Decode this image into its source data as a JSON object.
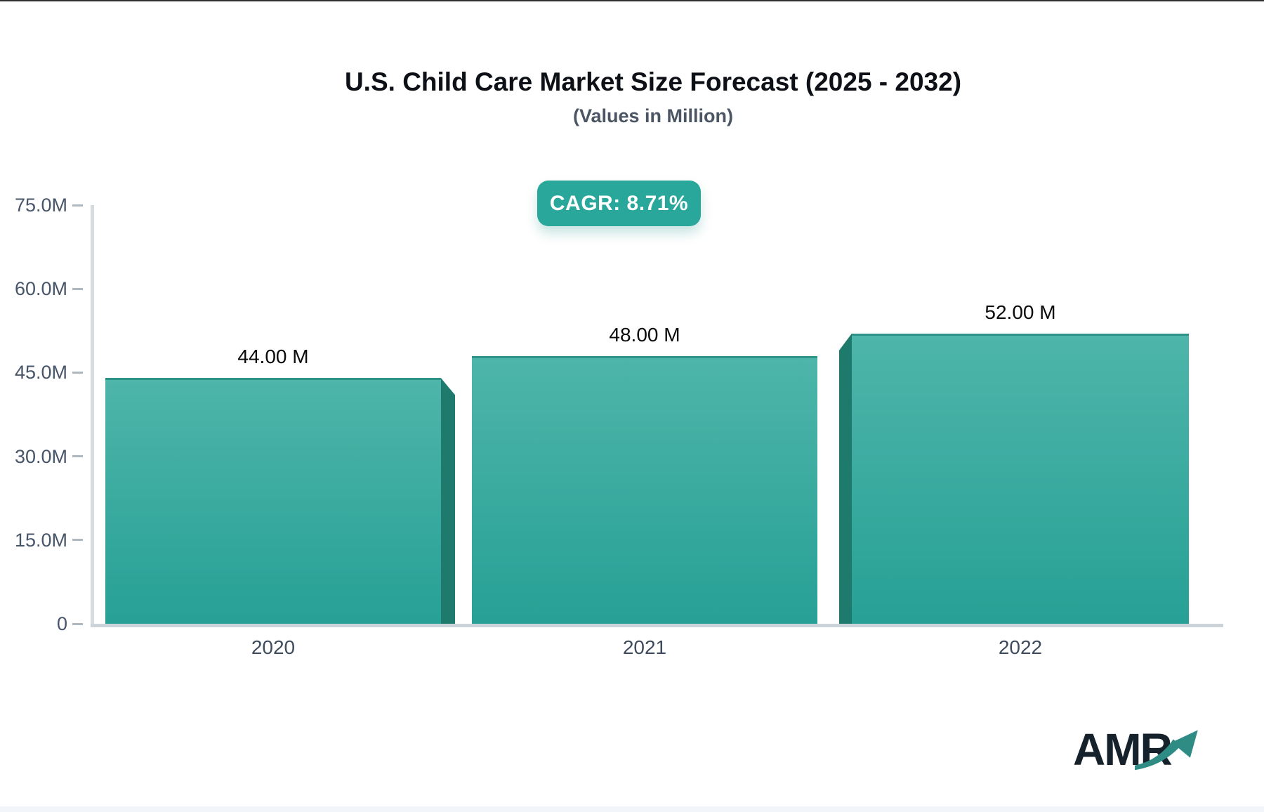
{
  "header": {
    "title": "U.S. Child Care Market Size Forecast (2025 - 2032)",
    "subtitle": "(Values in Million)"
  },
  "badge": {
    "label": "CAGR: 8.71%",
    "bg_color": "#2aa79b"
  },
  "chart_data": {
    "type": "bar",
    "title": "U.S. Child Care Market Size Forecast (2025 - 2032)",
    "subtitle": "(Values in Million)",
    "xlabel": "",
    "ylabel": "",
    "categories": [
      "2020",
      "2021",
      "2022"
    ],
    "values": [
      44,
      48,
      52
    ],
    "value_labels": [
      "44.00 M",
      "48.00 M",
      "52.00 M"
    ],
    "ylim": [
      0,
      75
    ],
    "yticks": [
      {
        "label": "75.0M",
        "value": 75
      },
      {
        "label": "60.0M",
        "value": 60
      },
      {
        "label": "45.0M",
        "value": 45
      },
      {
        "label": "30.0M",
        "value": 30
      },
      {
        "label": "15.0M",
        "value": 15
      },
      {
        "label": "0",
        "value": 0
      }
    ],
    "grid": false,
    "legend": "none",
    "cagr": "CAGR: 8.71%",
    "bar_gradient_top": "#4eb5aa",
    "bar_gradient_bottom": "#27a095",
    "bar_side_color": "#1f7a6e"
  },
  "logo": {
    "text": "AMR",
    "arrow_color": "#2e8c85"
  }
}
